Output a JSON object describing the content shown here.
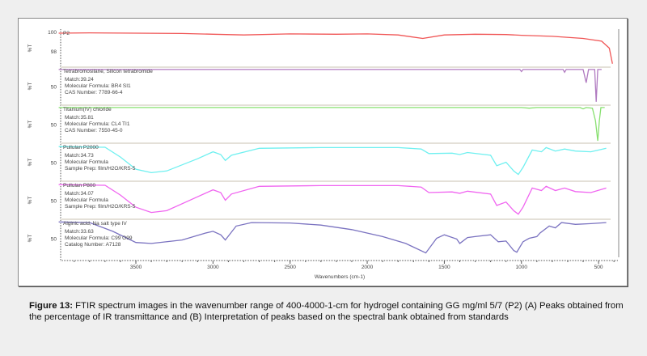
{
  "chart_data": {
    "type": "line",
    "title": "",
    "xlabel": "Wavenumbers (cm-1)",
    "ylabel": "%T",
    "xlim": [
      4000,
      400
    ],
    "x_ticks": [
      "3500",
      "3000",
      "2500",
      "2000",
      "1500",
      "1000",
      "500"
    ],
    "grid": false,
    "panels": [
      {
        "name": "P2",
        "color": "#f05555",
        "y_ticks": [
          "100",
          "98"
        ],
        "info": [],
        "points": [
          [
            4000,
            93
          ],
          [
            3800,
            94
          ],
          [
            3500,
            93
          ],
          [
            3200,
            92
          ],
          [
            3000,
            90
          ],
          [
            2800,
            88
          ],
          [
            2500,
            91
          ],
          [
            2200,
            90
          ],
          [
            2000,
            91
          ],
          [
            1800,
            88
          ],
          [
            1640,
            78
          ],
          [
            1500,
            88
          ],
          [
            1300,
            90
          ],
          [
            1100,
            89
          ],
          [
            1000,
            87
          ],
          [
            800,
            84
          ],
          [
            600,
            78
          ],
          [
            480,
            70
          ],
          [
            430,
            50
          ],
          [
            410,
            5
          ]
        ]
      },
      {
        "name": "Tetrabromosilane, Silicon tetrabromide",
        "color": "#b07ac0",
        "y_ticks": [
          "50"
        ],
        "info": [
          "Match:39.24",
          "Molecular Formula:  BR4 SI1",
          "CAS Number:  7789-66-4"
        ],
        "points": [
          [
            4000,
            98
          ],
          [
            1010,
            98
          ],
          [
            1000,
            92
          ],
          [
            990,
            98
          ],
          [
            730,
            98
          ],
          [
            720,
            90
          ],
          [
            710,
            98
          ],
          [
            600,
            98
          ],
          [
            580,
            60
          ],
          [
            565,
            98
          ],
          [
            525,
            98
          ],
          [
            515,
            5
          ],
          [
            505,
            98
          ],
          [
            480,
            98
          ]
        ]
      },
      {
        "name": "Titanium(IV) chloride",
        "color": "#88e070",
        "y_ticks": [
          "50"
        ],
        "info": [
          "Match:35.81",
          "Molecular Formula:  CL4 TI1",
          "CAS Number:  7550-45-0"
        ],
        "points": [
          [
            4000,
            98
          ],
          [
            1000,
            98
          ],
          [
            950,
            96
          ],
          [
            900,
            98
          ],
          [
            620,
            98
          ],
          [
            600,
            94
          ],
          [
            580,
            98
          ],
          [
            540,
            96
          ],
          [
            520,
            60
          ],
          [
            505,
            2
          ],
          [
            495,
            60
          ],
          [
            485,
            98
          ],
          [
            460,
            98
          ]
        ]
      },
      {
        "name": "Pullulan P2000",
        "color": "#6ff0f0",
        "y_ticks": [
          "50"
        ],
        "info": [
          "Match:34.73",
          "Molecular Formula",
          "Sample Prep:  film/H2O/KRS-5"
        ],
        "points": [
          [
            4000,
            95
          ],
          [
            3700,
            93
          ],
          [
            3600,
            65
          ],
          [
            3500,
            30
          ],
          [
            3400,
            20
          ],
          [
            3300,
            25
          ],
          [
            3100,
            60
          ],
          [
            3000,
            80
          ],
          [
            2950,
            72
          ],
          [
            2920,
            55
          ],
          [
            2880,
            70
          ],
          [
            2700,
            90
          ],
          [
            2300,
            92
          ],
          [
            1800,
            92
          ],
          [
            1650,
            88
          ],
          [
            1600,
            75
          ],
          [
            1450,
            76
          ],
          [
            1400,
            72
          ],
          [
            1350,
            78
          ],
          [
            1200,
            70
          ],
          [
            1160,
            40
          ],
          [
            1100,
            50
          ],
          [
            1050,
            25
          ],
          [
            1020,
            15
          ],
          [
            990,
            35
          ],
          [
            930,
            85
          ],
          [
            870,
            80
          ],
          [
            840,
            92
          ],
          [
            780,
            82
          ],
          [
            720,
            88
          ],
          [
            650,
            82
          ],
          [
            550,
            80
          ],
          [
            450,
            90
          ]
        ]
      },
      {
        "name": "Pullulan P800",
        "color": "#f065f0",
        "y_ticks": [
          "50"
        ],
        "info": [
          "Match:34.07",
          "Molecular Formula",
          "Sample Prep:  film/H2O/KRS-5"
        ],
        "points": [
          [
            4000,
            95
          ],
          [
            3700,
            93
          ],
          [
            3600,
            65
          ],
          [
            3500,
            30
          ],
          [
            3400,
            15
          ],
          [
            3300,
            20
          ],
          [
            3100,
            60
          ],
          [
            3000,
            80
          ],
          [
            2950,
            72
          ],
          [
            2920,
            50
          ],
          [
            2880,
            68
          ],
          [
            2700,
            90
          ],
          [
            2300,
            92
          ],
          [
            1800,
            92
          ],
          [
            1650,
            88
          ],
          [
            1600,
            72
          ],
          [
            1450,
            74
          ],
          [
            1400,
            70
          ],
          [
            1350,
            76
          ],
          [
            1200,
            68
          ],
          [
            1160,
            35
          ],
          [
            1100,
            45
          ],
          [
            1050,
            20
          ],
          [
            1020,
            10
          ],
          [
            990,
            30
          ],
          [
            930,
            85
          ],
          [
            870,
            78
          ],
          [
            840,
            90
          ],
          [
            780,
            78
          ],
          [
            720,
            85
          ],
          [
            650,
            75
          ],
          [
            550,
            72
          ],
          [
            450,
            85
          ]
        ]
      },
      {
        "name": "Alginic acid, Na salt type IV",
        "color": "#7a72c0",
        "y_ticks": [
          "50"
        ],
        "info": [
          "Match:33.63",
          "Molecular Formula:  C99 O99",
          "Catalog Number:  A7128"
        ],
        "points": [
          [
            4000,
            97
          ],
          [
            3800,
            95
          ],
          [
            3650,
            70
          ],
          [
            3500,
            38
          ],
          [
            3400,
            35
          ],
          [
            3200,
            45
          ],
          [
            3050,
            65
          ],
          [
            3000,
            70
          ],
          [
            2950,
            60
          ],
          [
            2920,
            45
          ],
          [
            2850,
            85
          ],
          [
            2750,
            95
          ],
          [
            2500,
            94
          ],
          [
            2300,
            88
          ],
          [
            2100,
            75
          ],
          [
            1900,
            55
          ],
          [
            1750,
            35
          ],
          [
            1620,
            8
          ],
          [
            1550,
            50
          ],
          [
            1500,
            60
          ],
          [
            1420,
            48
          ],
          [
            1400,
            35
          ],
          [
            1350,
            52
          ],
          [
            1300,
            55
          ],
          [
            1200,
            60
          ],
          [
            1150,
            40
          ],
          [
            1100,
            42
          ],
          [
            1050,
            15
          ],
          [
            1030,
            10
          ],
          [
            990,
            40
          ],
          [
            950,
            50
          ],
          [
            900,
            55
          ],
          [
            880,
            65
          ],
          [
            820,
            85
          ],
          [
            780,
            80
          ],
          [
            740,
            95
          ],
          [
            650,
            90
          ],
          [
            550,
            92
          ],
          [
            450,
            95
          ]
        ]
      }
    ]
  },
  "caption": {
    "label": "Figure 13:",
    "text": " FTIR spectrum images in the wavenumber range of 400-4000-1-cm for hydrogel containing GG mg/ml 5/7 (P2) (A) Peaks obtained from the percentage of IR transmittance and (B) Interpretation of peaks based on the spectral bank obtained from standards"
  }
}
